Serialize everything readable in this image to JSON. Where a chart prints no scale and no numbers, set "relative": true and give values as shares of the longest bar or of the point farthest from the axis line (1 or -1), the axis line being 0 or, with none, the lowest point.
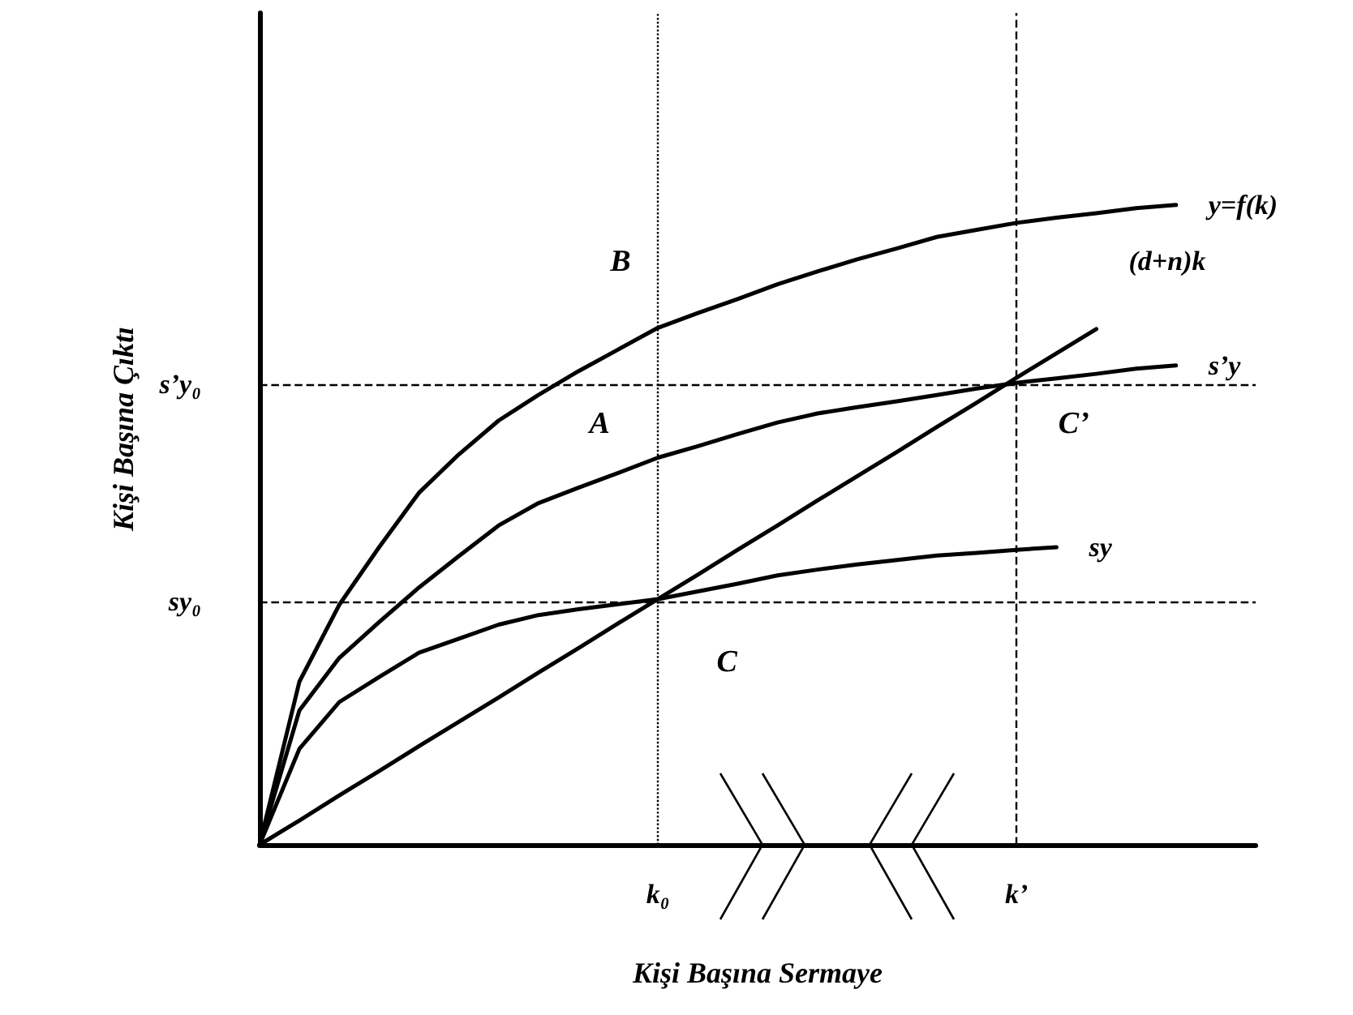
{
  "chart_data": {
    "type": "line",
    "xlabel": "Kişi Başına Sermaye",
    "ylabel": "Kişi Başına Çıktı",
    "relative": true,
    "marker": "none",
    "line_style": "solid",
    "categories": [
      null,
      null,
      null,
      null,
      null,
      null,
      null,
      null,
      null,
      null,
      "k₀",
      null,
      null,
      null,
      null,
      null,
      null,
      null,
      null,
      "k’",
      null,
      null,
      null,
      null,
      null,
      null
    ],
    "series": [
      {
        "name": "y=f(k)",
        "color": "#000000",
        "values": [
          0,
          0.255,
          0.375,
          0.465,
          0.55,
          0.61,
          0.663,
          0.703,
          0.74,
          0.774,
          0.808,
          0.831,
          0.853,
          0.876,
          0.896,
          0.915,
          0.932,
          0.95,
          0.961,
          0.972,
          0.98,
          0.987,
          0.995,
          1,
          null,
          null
        ]
      },
      {
        "name": "(d+n)k",
        "color": "#000000",
        "values": [
          0,
          0.038,
          0.077,
          0.115,
          0.154,
          0.192,
          0.23,
          0.269,
          0.307,
          0.346,
          0.384,
          0.422,
          0.461,
          0.499,
          0.538,
          0.576,
          0.614,
          0.653,
          0.691,
          0.73,
          0.768,
          0.806,
          null,
          null,
          null,
          null
        ]
      },
      {
        "name": "s’y",
        "color": "#000000",
        "values": [
          0,
          0.21,
          0.292,
          0.348,
          0.402,
          0.451,
          0.499,
          0.534,
          0.558,
          0.581,
          0.605,
          0.623,
          0.642,
          0.66,
          0.674,
          0.684,
          0.693,
          0.703,
          0.713,
          0.722,
          0.729,
          0.736,
          0.744,
          0.749,
          null,
          null
        ]
      },
      {
        "name": "sy",
        "color": "#000000",
        "values": [
          0,
          0.15,
          0.223,
          0.262,
          0.3,
          0.322,
          0.344,
          0.359,
          0.368,
          0.376,
          0.384,
          0.396,
          0.408,
          0.421,
          0.43,
          0.438,
          0.445,
          0.452,
          0.456,
          0.461,
          0.465,
          null,
          null,
          null,
          null,
          null
        ]
      }
    ],
    "ref_lines": [
      {
        "axis": "x",
        "value": "k₀",
        "line_style": "dotted",
        "color": "#000000"
      },
      {
        "axis": "x",
        "value": "k’",
        "line_style": "dashed",
        "color": "#000000"
      },
      {
        "axis": "y",
        "value": 0.379,
        "label": "sy₀",
        "line_style": "dashed",
        "color": "#000000"
      },
      {
        "axis": "y",
        "value": 0.721,
        "label": "s’y₀",
        "line_style": "dashed",
        "color": "#000000"
      }
    ],
    "annotations": [
      "B",
      "A",
      "C",
      "C’"
    ]
  }
}
